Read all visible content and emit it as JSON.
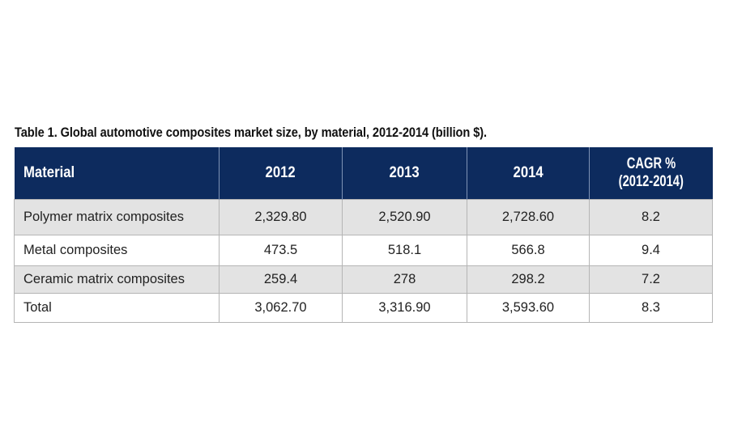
{
  "title": "Table 1. Global automotive composites market size, by material, 2012-2014 (billion $).",
  "colors": {
    "header_bg": "#0d2b5e",
    "header_text": "#ffffff",
    "row_alt_bg": "#e3e3e3"
  },
  "table": {
    "headers": [
      "Material",
      "2012",
      "2013",
      "2014",
      "CAGR %\n(2012-2014)"
    ],
    "header_cagr_line1": "CAGR %",
    "header_cagr_line2": "(2012-2014)",
    "rows": [
      [
        "Polymer matrix composites",
        "2,329.80",
        "2,520.90",
        "2,728.60",
        "8.2"
      ],
      [
        "Metal composites",
        "473.5",
        "518.1",
        "566.8",
        "9.4"
      ],
      [
        "Ceramic matrix composites",
        "259.4",
        "278",
        "298.2",
        "7.2"
      ],
      [
        "Total",
        "3,062.70",
        "3,316.90",
        "3,593.60",
        "8.3"
      ]
    ]
  }
}
